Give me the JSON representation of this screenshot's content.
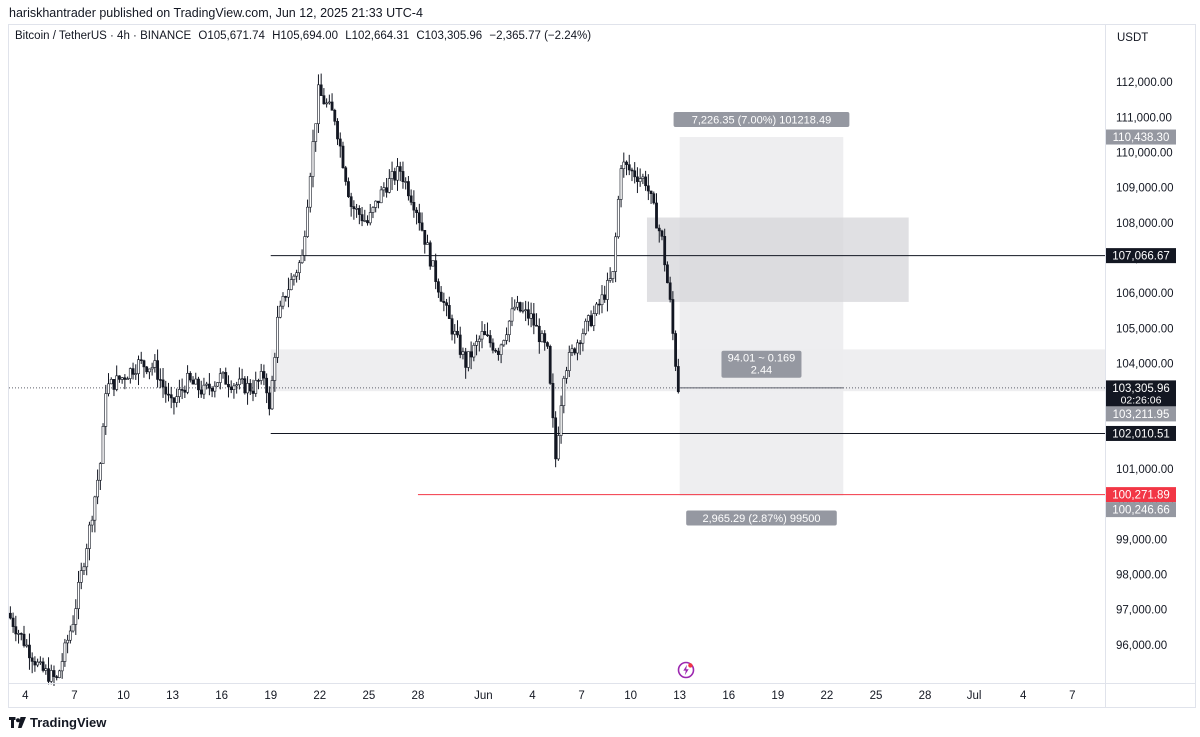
{
  "header": {
    "published": "hariskhantrader published on TradingView.com, Jun 12, 2025 21:33 UTC-4"
  },
  "legend": {
    "symbol": "Bitcoin / TetherUS · 4h · BINANCE",
    "open": "O105,671.74",
    "high": "H105,694.00",
    "low": "L102,664.31",
    "close": "C103,305.96",
    "change": "−2,365.77 (−2.24%)"
  },
  "axis": {
    "currency": "USDT"
  },
  "brand": {
    "name": "TradingView"
  },
  "colors": {
    "candle": "#131722",
    "zone": "#ececee",
    "zone_dark": "#d6d6d9",
    "red_line": "#f23645",
    "badge_gray": "#9598a1",
    "badge_black": "#131722",
    "badge_red": "#f23645"
  },
  "chart_data": {
    "type": "candlestick",
    "ylim": [
      95200,
      112600
    ],
    "y_ticks": [
      96000,
      97000,
      98000,
      99000,
      100000,
      101000,
      102000,
      103000,
      104000,
      105000,
      106000,
      107000,
      108000,
      109000,
      110000,
      111000,
      112000
    ],
    "y_tick_labels": [
      "96,000.00",
      "97,000.00",
      "98,000.00",
      "99,000.00",
      "100,000.00",
      "101,000.00",
      "102,000.00",
      "103,000.00",
      "104,000.00",
      "105,000.00",
      "106,000.00",
      "107,000.00",
      "108,000.00",
      "109,000.00",
      "110,000.00",
      "111,000.00",
      "112,000.00"
    ],
    "x_start": "2025-05-03",
    "x_end": "2025-07-09",
    "x_ticks": [
      {
        "date": "2025-05-04",
        "label": "4"
      },
      {
        "date": "2025-05-07",
        "label": "7"
      },
      {
        "date": "2025-05-10",
        "label": "10"
      },
      {
        "date": "2025-05-13",
        "label": "13"
      },
      {
        "date": "2025-05-16",
        "label": "16"
      },
      {
        "date": "2025-05-19",
        "label": "19"
      },
      {
        "date": "2025-05-22",
        "label": "22"
      },
      {
        "date": "2025-05-25",
        "label": "25"
      },
      {
        "date": "2025-05-28",
        "label": "28"
      },
      {
        "date": "2025-06-01",
        "label": "Jun"
      },
      {
        "date": "2025-06-04",
        "label": "4"
      },
      {
        "date": "2025-06-07",
        "label": "7"
      },
      {
        "date": "2025-06-10",
        "label": "10"
      },
      {
        "date": "2025-06-13",
        "label": "13"
      },
      {
        "date": "2025-06-16",
        "label": "16"
      },
      {
        "date": "2025-06-19",
        "label": "19"
      },
      {
        "date": "2025-06-22",
        "label": "22"
      },
      {
        "date": "2025-06-25",
        "label": "25"
      },
      {
        "date": "2025-06-28",
        "label": "28"
      },
      {
        "date": "2025-07-01",
        "label": "Jul"
      },
      {
        "date": "2025-07-04",
        "label": "4"
      },
      {
        "date": "2025-07-07",
        "label": "7"
      }
    ],
    "price_path": [
      [
        "2025-05-03",
        96900
      ],
      [
        "2025-05-04",
        96100
      ],
      [
        "2025-05-05",
        95300
      ],
      [
        "2025-05-06",
        95000
      ],
      [
        "2025-05-07",
        96700
      ],
      [
        "2025-05-08",
        99300
      ],
      [
        "2025-05-08T18:00",
        101400
      ],
      [
        "2025-05-09",
        103300
      ],
      [
        "2025-05-10",
        103600
      ],
      [
        "2025-05-11",
        104000
      ],
      [
        "2025-05-12",
        103900
      ],
      [
        "2025-05-13",
        102800
      ],
      [
        "2025-05-14",
        103500
      ],
      [
        "2025-05-15",
        103200
      ],
      [
        "2025-05-16",
        103600
      ],
      [
        "2025-05-17",
        103400
      ],
      [
        "2025-05-18",
        103300
      ],
      [
        "2025-05-18T18:00",
        103700
      ],
      [
        "2025-05-19",
        102600
      ],
      [
        "2025-05-19T12:00",
        105200
      ],
      [
        "2025-05-20",
        106000
      ],
      [
        "2025-05-21",
        107000
      ],
      [
        "2025-05-21T12:00",
        109500
      ],
      [
        "2025-05-22",
        111700
      ],
      [
        "2025-05-23",
        111000
      ],
      [
        "2025-05-24",
        108500
      ],
      [
        "2025-05-25",
        108000
      ],
      [
        "2025-05-26",
        109000
      ],
      [
        "2025-05-27",
        109500
      ],
      [
        "2025-05-28",
        108400
      ],
      [
        "2025-05-29",
        106700
      ],
      [
        "2025-05-30",
        105200
      ],
      [
        "2025-05-31",
        104000
      ],
      [
        "2025-06-01",
        104800
      ],
      [
        "2025-06-02",
        104400
      ],
      [
        "2025-06-03",
        105600
      ],
      [
        "2025-06-04",
        105300
      ],
      [
        "2025-06-05",
        104300
      ],
      [
        "2025-06-05T12:00",
        101300
      ],
      [
        "2025-06-06",
        103800
      ],
      [
        "2025-06-07",
        104800
      ],
      [
        "2025-06-08",
        105500
      ],
      [
        "2025-06-09",
        106500
      ],
      [
        "2025-06-09T12:00",
        109700
      ],
      [
        "2025-06-10",
        109500
      ],
      [
        "2025-06-11",
        109200
      ],
      [
        "2025-06-12",
        107500
      ],
      [
        "2025-06-12T12:00",
        105700
      ],
      [
        "2025-06-12T18:00",
        104400
      ],
      [
        "2025-06-13",
        103306
      ]
    ],
    "price_labels": [
      {
        "label": "110,438.30",
        "value": 110438.3,
        "style": "gray"
      },
      {
        "label": "107,066.67",
        "value": 107066.67,
        "style": "black"
      },
      {
        "label": "103,305.96",
        "value": 103305.96,
        "style": "black",
        "sub": "02:26:06"
      },
      {
        "label": "103,211.95",
        "value": 103211.95,
        "style": "gray"
      },
      {
        "label": "102,010.51",
        "value": 102010.51,
        "style": "black"
      },
      {
        "label": "100,271.89",
        "value": 100271.89,
        "style": "red"
      },
      {
        "label": "100,246.66",
        "value": 100246.66,
        "style": "gray"
      }
    ],
    "annotations": {
      "target_label": "7,226.35 (7.00%) 101218.49",
      "stop_label": "2,965.29 (2.87%) 99500",
      "ratio_line1": "94.01 ~ 0.169",
      "ratio_line2": "2.44"
    },
    "zones": [
      {
        "name": "target-box",
        "x0": "2025-06-13",
        "x1": "2025-06-23",
        "y0": 100246.66,
        "y1": 110438.3
      },
      {
        "name": "supply-zone",
        "x0": "2025-06-11",
        "x1": "2025-06-27",
        "y0": 105750,
        "y1": 108150
      },
      {
        "name": "demand-zone",
        "x0": "2025-05-19",
        "x1": "2025-07-09",
        "y0": 103211.95,
        "y1": 104400
      }
    ],
    "levels": [
      {
        "name": "resistance-line",
        "value": 107066.67,
        "x0": "2025-05-19",
        "x1": "2025-07-09"
      },
      {
        "name": "support-line",
        "value": 102010.51,
        "x0": "2025-05-19",
        "x1": "2025-07-09"
      },
      {
        "name": "stop-line",
        "value": 100271.89,
        "x0": "2025-05-28",
        "x1": "2025-07-09"
      },
      {
        "name": "entry-line",
        "value": 103305.96,
        "x0": "2025-06-13",
        "x1": "2025-06-23"
      }
    ]
  }
}
